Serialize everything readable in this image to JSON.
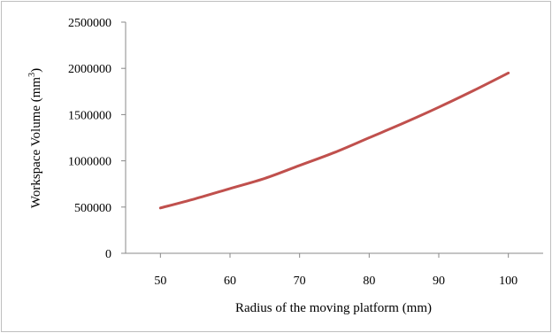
{
  "chart_data": {
    "type": "line",
    "xlabel": "Radius of the moving platform (mm)",
    "ylabel": {
      "main": "Workspace Volume (mm",
      "superscript": "3",
      "tail": ")"
    },
    "xlim": [
      45,
      105
    ],
    "ylim": [
      0,
      2500000
    ],
    "x_ticks": [
      "50",
      "60",
      "70",
      "80",
      "90",
      "100"
    ],
    "x_tick_values": [
      50,
      60,
      70,
      80,
      90,
      100
    ],
    "y_ticks": [
      "0",
      "500000",
      "1000000",
      "1500000",
      "2000000",
      "2500000"
    ],
    "y_tick_values": [
      0,
      500000,
      1000000,
      1500000,
      2000000,
      2500000
    ],
    "grid": false,
    "legend": "none",
    "series": [
      {
        "color": "#c0504d",
        "x": [
          50,
          55,
          60,
          65,
          70,
          75,
          80,
          85,
          90,
          95,
          100
        ],
        "values": [
          490000,
          590000,
          700000,
          810000,
          950000,
          1090000,
          1250000,
          1410000,
          1580000,
          1760000,
          1950000
        ]
      }
    ],
    "frame_color": "#bfbfbf",
    "axis_color": "#888888"
  }
}
